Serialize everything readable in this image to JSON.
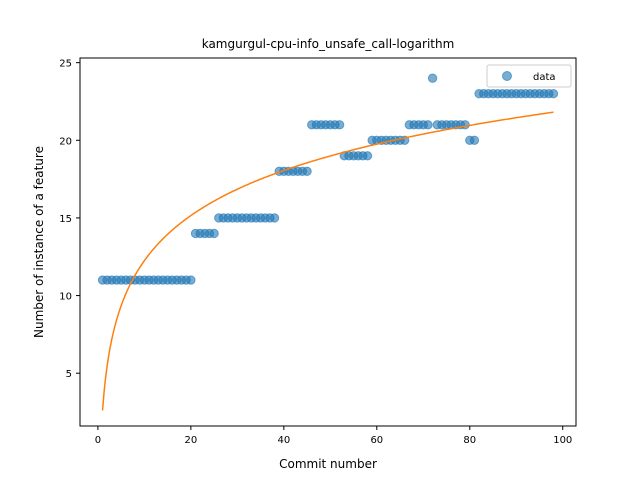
{
  "chart_data": {
    "type": "scatter",
    "title": "kamgurgul-cpu-info_unsafe_call-logarithm",
    "xlabel": "Commit number",
    "ylabel": "Number of instance of a feature",
    "xlim": [
      -3.85,
      102.85
    ],
    "ylim": [
      1.6,
      25.3
    ],
    "xticks": [
      0,
      20,
      40,
      60,
      80,
      100
    ],
    "yticks": [
      5,
      10,
      15,
      20,
      25
    ],
    "legend_position": "upper right",
    "legend": [
      {
        "label": "data",
        "marker": "circle"
      }
    ],
    "colors": {
      "data": "#1f77b4",
      "fit": "#ff7f0e"
    },
    "series": [
      {
        "name": "data",
        "kind": "scatter",
        "points": [
          [
            1,
            11
          ],
          [
            2,
            11
          ],
          [
            3,
            11
          ],
          [
            4,
            11
          ],
          [
            5,
            11
          ],
          [
            6,
            11
          ],
          [
            7,
            11
          ],
          [
            8,
            11
          ],
          [
            9,
            11
          ],
          [
            10,
            11
          ],
          [
            11,
            11
          ],
          [
            12,
            11
          ],
          [
            13,
            11
          ],
          [
            14,
            11
          ],
          [
            15,
            11
          ],
          [
            16,
            11
          ],
          [
            17,
            11
          ],
          [
            18,
            11
          ],
          [
            19,
            11
          ],
          [
            20,
            11
          ],
          [
            21,
            14
          ],
          [
            22,
            14
          ],
          [
            23,
            14
          ],
          [
            24,
            14
          ],
          [
            25,
            14
          ],
          [
            26,
            15
          ],
          [
            27,
            15
          ],
          [
            28,
            15
          ],
          [
            29,
            15
          ],
          [
            30,
            15
          ],
          [
            31,
            15
          ],
          [
            32,
            15
          ],
          [
            33,
            15
          ],
          [
            34,
            15
          ],
          [
            35,
            15
          ],
          [
            36,
            15
          ],
          [
            37,
            15
          ],
          [
            38,
            15
          ],
          [
            39,
            18
          ],
          [
            40,
            18
          ],
          [
            41,
            18
          ],
          [
            42,
            18
          ],
          [
            43,
            18
          ],
          [
            44,
            18
          ],
          [
            45,
            18
          ],
          [
            46,
            21
          ],
          [
            47,
            21
          ],
          [
            48,
            21
          ],
          [
            49,
            21
          ],
          [
            50,
            21
          ],
          [
            51,
            21
          ],
          [
            52,
            21
          ],
          [
            53,
            19
          ],
          [
            54,
            19
          ],
          [
            55,
            19
          ],
          [
            56,
            19
          ],
          [
            57,
            19
          ],
          [
            58,
            19
          ],
          [
            59,
            20
          ],
          [
            60,
            20
          ],
          [
            61,
            20
          ],
          [
            62,
            20
          ],
          [
            63,
            20
          ],
          [
            64,
            20
          ],
          [
            65,
            20
          ],
          [
            66,
            20
          ],
          [
            67,
            21
          ],
          [
            68,
            21
          ],
          [
            69,
            21
          ],
          [
            70,
            21
          ],
          [
            71,
            21
          ],
          [
            72,
            24
          ],
          [
            73,
            21
          ],
          [
            74,
            21
          ],
          [
            75,
            21
          ],
          [
            76,
            21
          ],
          [
            77,
            21
          ],
          [
            78,
            21
          ],
          [
            79,
            21
          ],
          [
            80,
            20
          ],
          [
            81,
            20
          ],
          [
            82,
            23
          ],
          [
            83,
            23
          ],
          [
            84,
            23
          ],
          [
            85,
            23
          ],
          [
            86,
            23
          ],
          [
            87,
            23
          ],
          [
            88,
            23
          ],
          [
            89,
            23
          ],
          [
            90,
            23
          ],
          [
            91,
            23
          ],
          [
            92,
            23
          ],
          [
            93,
            23
          ],
          [
            94,
            23
          ],
          [
            95,
            23
          ],
          [
            96,
            23
          ],
          [
            97,
            23
          ],
          [
            98,
            23
          ]
        ]
      },
      {
        "name": "",
        "kind": "line",
        "fit": {
          "form": "a + b*ln(x)",
          "a": 2.6,
          "b": 4.19
        },
        "x_range": [
          1,
          98
        ]
      }
    ]
  }
}
